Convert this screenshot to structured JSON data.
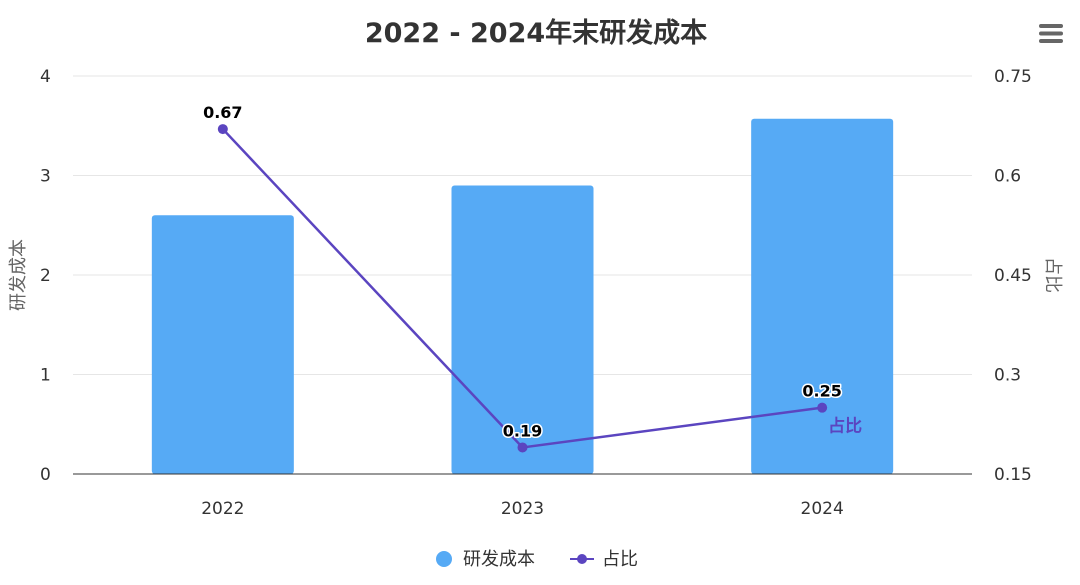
{
  "chart_data": {
    "type": "bar",
    "title": "2022 - 2024年末研发成本",
    "categories": [
      "2022",
      "2023",
      "2024"
    ],
    "series": [
      {
        "name": "研发成本",
        "type": "bar",
        "axis": "left",
        "color": "#56aaf5",
        "values": [
          2.6,
          2.9,
          3.57
        ]
      },
      {
        "name": "占比",
        "type": "line",
        "axis": "right",
        "color": "#5b45c0",
        "values": [
          0.67,
          0.19,
          0.25
        ]
      }
    ],
    "y_left": {
      "label": "研发成本",
      "min": 0,
      "max": 4,
      "ticks": [
        "0",
        "1",
        "2",
        "3",
        "4"
      ]
    },
    "y_right": {
      "label": "占比",
      "min": 0.15,
      "max": 0.75,
      "ticks": [
        "0.15",
        "0.3",
        "0.45",
        "0.6",
        "0.75"
      ]
    },
    "data_labels": [
      "0.67",
      "0.19",
      "0.25"
    ],
    "line_end_label": "占比",
    "grid": true,
    "legend": "bottom-center"
  },
  "menu_icon": "hamburger-menu-icon"
}
